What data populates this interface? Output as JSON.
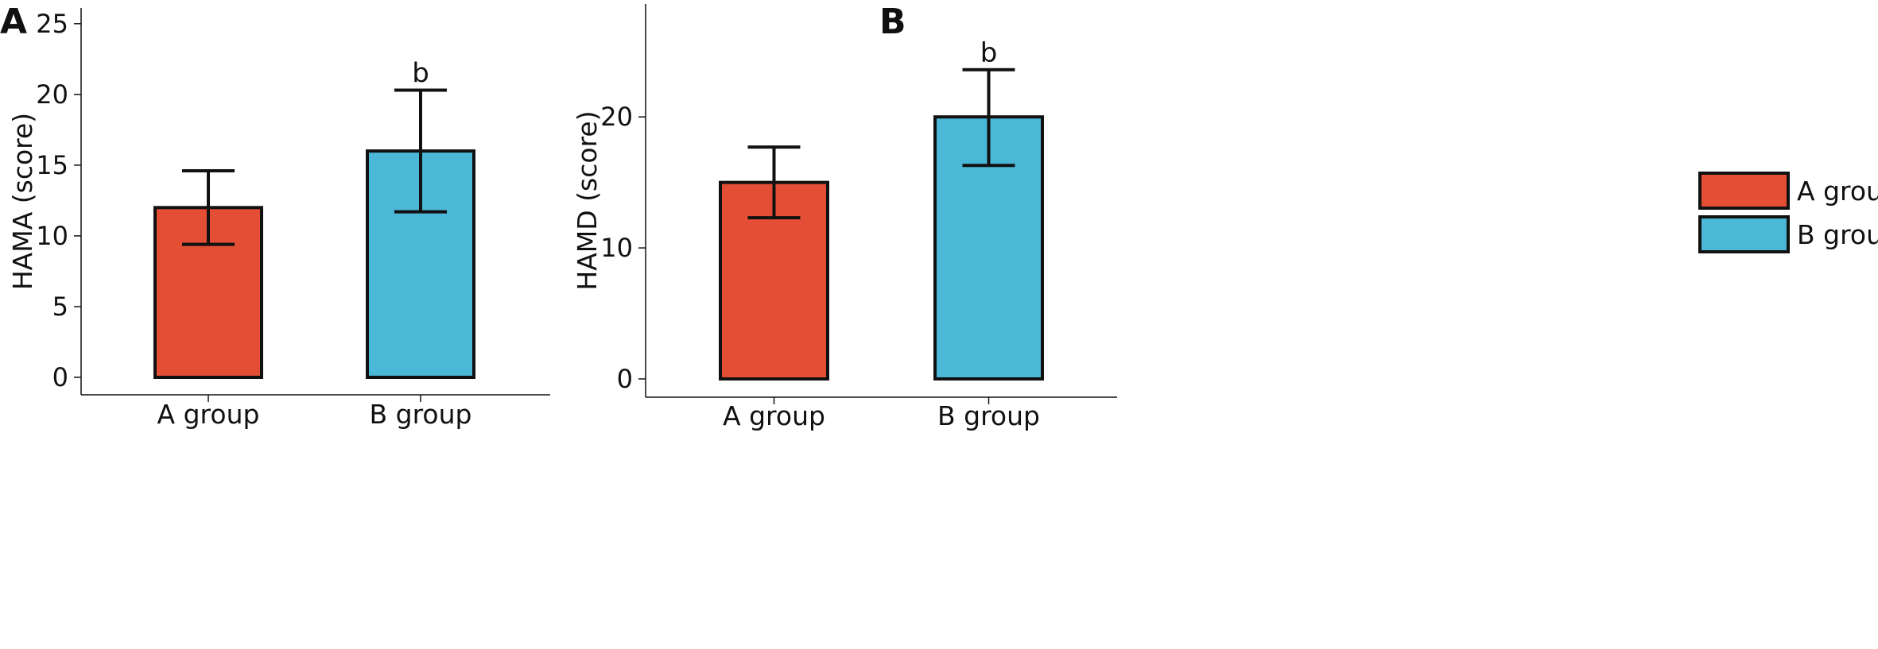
{
  "colors": {
    "A group": "#e44e35",
    "B group": "#4ab8d6",
    "stroke": "#111111"
  },
  "legend": {
    "entries": [
      {
        "label": "A group",
        "color": "#e44e35"
      },
      {
        "label": "B group",
        "color": "#4ab8d6"
      }
    ],
    "position": "right"
  },
  "chart_data": [
    {
      "type": "bar",
      "panel": "A",
      "title": "",
      "xlabel": "",
      "ylabel": "HAMA (score)",
      "categories": [
        "A group",
        "B group"
      ],
      "values": [
        12.0,
        16.0
      ],
      "error_high": [
        14.6,
        20.3
      ],
      "error_low": [
        9.4,
        11.7
      ],
      "significance_labels": [
        "",
        "b"
      ],
      "ylim": [
        0,
        26
      ],
      "yticks": [
        0,
        5,
        10,
        15,
        20,
        25
      ],
      "grid": false
    },
    {
      "type": "bar",
      "panel": "B",
      "title": "",
      "xlabel": "",
      "ylabel": "HAMD (score)",
      "categories": [
        "A group",
        "B group"
      ],
      "values": [
        15.0,
        20.0
      ],
      "error_high": [
        17.7,
        23.6
      ],
      "error_low": [
        12.3,
        16.3
      ],
      "significance_labels": [
        "",
        "b"
      ],
      "ylim": [
        0,
        28.5
      ],
      "yticks": [
        0,
        10,
        20
      ],
      "grid": false
    }
  ]
}
